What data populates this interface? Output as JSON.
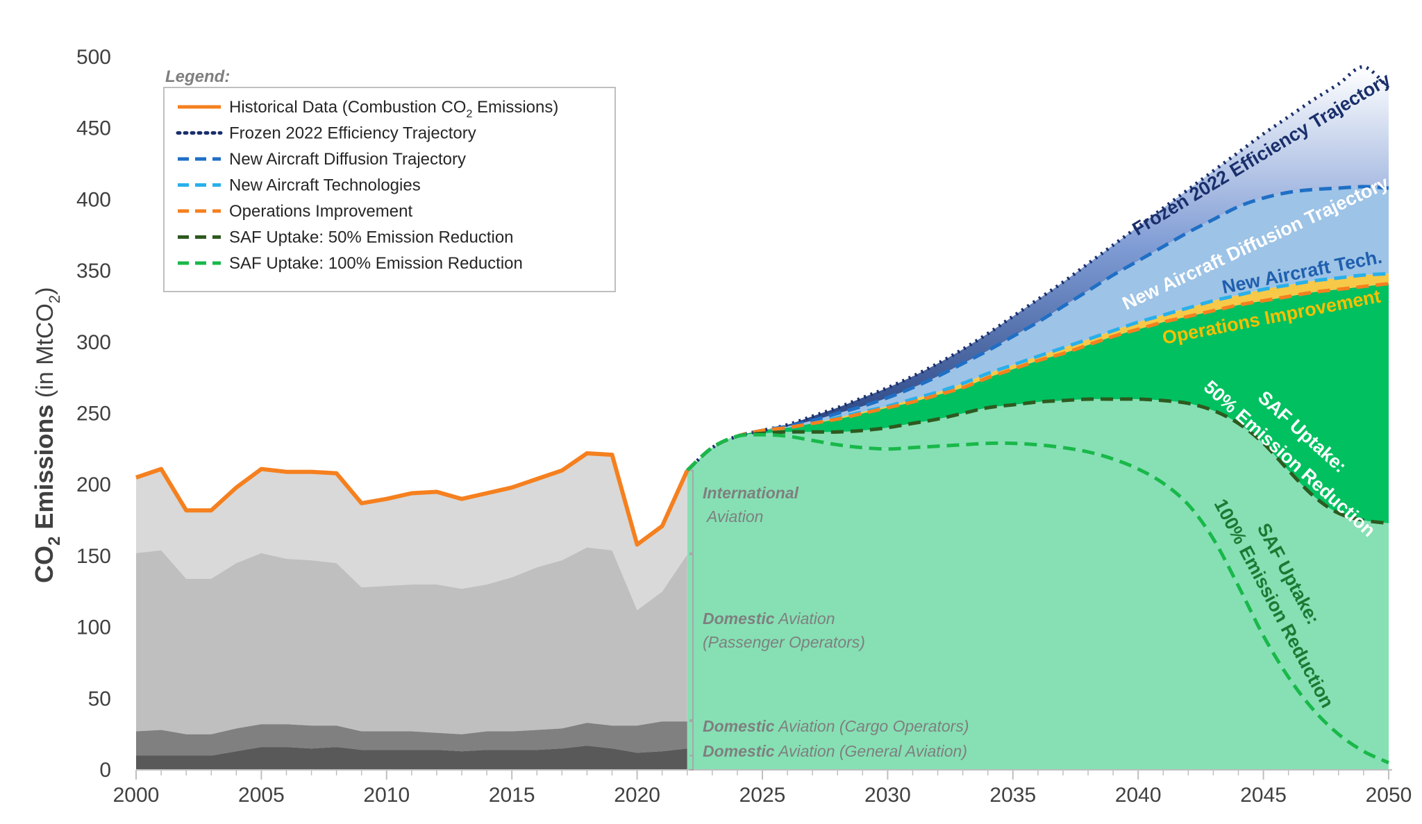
{
  "chart_data": {
    "type": "area",
    "title": "",
    "ylabel_main": "CO",
    "ylabel_sub": "2",
    "ylabel_main2": " Emissions",
    "ylabel_unit": " (in MtCO",
    "ylabel_unit_sub": "2",
    "ylabel_unit_end": ")",
    "xlim": [
      2000,
      2050
    ],
    "ylim": [
      0,
      500
    ],
    "xticks": [
      "2000",
      "2005",
      "2010",
      "2015",
      "2020",
      "2025",
      "2030",
      "2035",
      "2040",
      "2045",
      "2050"
    ],
    "yticks": [
      "0",
      "50",
      "100",
      "150",
      "200",
      "250",
      "300",
      "350",
      "400",
      "450",
      "500"
    ],
    "legend": {
      "title": "Legend:",
      "items": [
        {
          "label": "Historical Data (Combustion CO",
          "sub": "2",
          "label_end": " Emissions)",
          "color": "#f5801f",
          "style": "solid"
        },
        {
          "label": "Frozen 2022 Efficiency Trajectory",
          "color": "#1a2f6b",
          "style": "dotted"
        },
        {
          "label": "New Aircraft Diffusion Trajectory",
          "color": "#1f6fc5",
          "style": "dashed"
        },
        {
          "label": "New Aircraft Technologies",
          "color": "#29b0ea",
          "style": "dashed"
        },
        {
          "label": "Operations Improvement",
          "color": "#f5801f",
          "style": "dashed"
        },
        {
          "label": "SAF Uptake: 50% Emission Reduction",
          "color": "#2e5a1f",
          "style": "dashed"
        },
        {
          "label": "SAF Uptake: 100% Emission Reduction",
          "color": "#19b84a",
          "style": "dashed"
        }
      ]
    },
    "historical": {
      "x": [
        2000,
        2001,
        2002,
        2003,
        2004,
        2005,
        2006,
        2007,
        2008,
        2009,
        2010,
        2011,
        2012,
        2013,
        2014,
        2015,
        2016,
        2017,
        2018,
        2019,
        2020,
        2021,
        2022
      ],
      "general_aviation": [
        10,
        10,
        10,
        10,
        13,
        16,
        16,
        15,
        16,
        14,
        14,
        14,
        14,
        13,
        14,
        14,
        14,
        15,
        17,
        15,
        12,
        13,
        15
      ],
      "cargo_operators": [
        27,
        28,
        25,
        25,
        29,
        32,
        32,
        31,
        31,
        27,
        27,
        27,
        26,
        25,
        27,
        27,
        28,
        29,
        33,
        31,
        31,
        34,
        34
      ],
      "passenger_operators": [
        152,
        154,
        134,
        134,
        145,
        152,
        148,
        147,
        145,
        128,
        129,
        130,
        130,
        127,
        130,
        135,
        142,
        147,
        156,
        154,
        112,
        125,
        151
      ],
      "total": [
        205,
        211,
        182,
        182,
        198,
        211,
        209,
        209,
        208,
        187,
        190,
        194,
        195,
        190,
        194,
        198,
        204,
        210,
        222,
        221,
        158,
        171,
        210
      ]
    },
    "projection": {
      "x": [
        2022,
        2023,
        2024,
        2025,
        2026,
        2027,
        2028,
        2029,
        2030,
        2031,
        2032,
        2033,
        2034,
        2035,
        2036,
        2037,
        2038,
        2039,
        2040,
        2041,
        2042,
        2043,
        2044,
        2045,
        2046,
        2047,
        2048,
        2049,
        2050
      ],
      "frozen_2022": [
        210,
        226,
        234,
        238,
        242,
        248,
        254,
        261,
        268,
        276,
        285,
        295,
        306,
        318,
        330,
        342,
        355,
        368,
        381,
        394,
        407,
        420,
        433,
        446,
        458,
        470,
        481,
        493,
        478
      ],
      "new_aircraft_diffusion": [
        210,
        226,
        234,
        238,
        241,
        245,
        250,
        255,
        261,
        268,
        276,
        285,
        294,
        304,
        314,
        325,
        336,
        347,
        357,
        367,
        377,
        386,
        395,
        401,
        405,
        407,
        408,
        409,
        408
      ],
      "new_aircraft_tech": [
        210,
        226,
        234,
        238,
        240,
        243,
        247,
        251,
        255,
        260,
        265,
        271,
        278,
        284,
        290,
        296,
        302,
        308,
        314,
        319,
        324,
        329,
        333,
        337,
        340,
        343,
        345,
        347,
        348
      ],
      "operations_improvement": [
        210,
        226,
        234,
        238,
        240,
        243,
        246,
        250,
        254,
        258,
        263,
        268,
        275,
        281,
        287,
        292,
        298,
        304,
        309,
        314,
        318,
        322,
        326,
        329,
        332,
        335,
        337,
        339,
        341
      ],
      "saf_50": [
        210,
        226,
        234,
        236,
        237,
        237,
        237,
        238,
        240,
        243,
        246,
        250,
        254,
        256,
        258,
        259,
        260,
        260,
        260,
        259,
        257,
        252,
        243,
        229,
        210,
        192,
        180,
        175,
        173
      ],
      "saf_100": [
        210,
        226,
        234,
        235,
        234,
        231,
        228,
        226,
        225,
        226,
        227,
        228,
        229,
        229,
        228,
        226,
        223,
        218,
        211,
        201,
        186,
        162,
        129,
        94,
        65,
        42,
        25,
        13,
        5
      ]
    },
    "segment_labels": [
      {
        "bold": "International",
        "text": "Aviation",
        "line2": ""
      },
      {
        "bold": "Domestic",
        "text": " Aviation",
        "line2": "(Passenger Operators)"
      },
      {
        "bold": "Domestic",
        "text": " Aviation (Cargo Operators)",
        "line2": ""
      },
      {
        "bold": "Domestic",
        "text": " Aviation (General Aviation)",
        "line2": ""
      }
    ],
    "curve_labels": {
      "frozen": "Frozen 2022 Efficiency Trajectory",
      "diffusion": "New Aircraft Diffusion Trajectory",
      "tech": "New Aircraft Tech.",
      "ops": "Operations Improvement",
      "saf50_a": "SAF Uptake:",
      "saf50_b": "50% Emission Reduction",
      "saf100_a": "SAF Uptake:",
      "saf100_b": "100% Emission Reduction"
    },
    "colors": {
      "general": "#595959",
      "cargo": "#808080",
      "passenger": "#bfbfbf",
      "international": "#d9d9d9",
      "saf100_fill": "#86e0b4",
      "saf50_fill": "#00c060",
      "tech_fill": "#9dc3e6",
      "frozen_fill_top": "#ffffff",
      "frozen_fill_bottom": "#1f3c80"
    }
  }
}
